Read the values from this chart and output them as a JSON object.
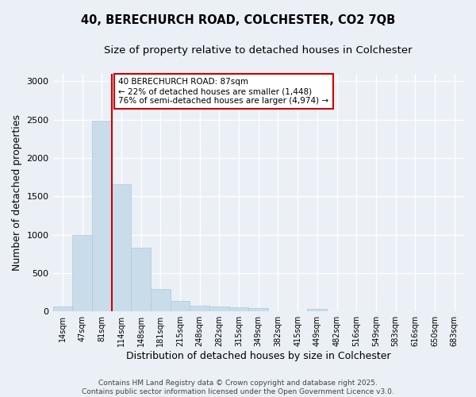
{
  "title_line1": "40, BERECHURCH ROAD, COLCHESTER, CO2 7QB",
  "title_line2": "Size of property relative to detached houses in Colchester",
  "xlabel": "Distribution of detached houses by size in Colchester",
  "ylabel": "Number of detached properties",
  "categories": [
    "14sqm",
    "47sqm",
    "81sqm",
    "114sqm",
    "148sqm",
    "181sqm",
    "215sqm",
    "248sqm",
    "282sqm",
    "315sqm",
    "349sqm",
    "382sqm",
    "415sqm",
    "449sqm",
    "482sqm",
    "516sqm",
    "549sqm",
    "583sqm",
    "616sqm",
    "650sqm",
    "683sqm"
  ],
  "values": [
    60,
    1000,
    2480,
    1660,
    830,
    290,
    140,
    70,
    60,
    55,
    45,
    0,
    0,
    30,
    0,
    0,
    0,
    0,
    0,
    0,
    0
  ],
  "bar_color": "#c9dcea",
  "bar_edge_color": "#b0c8db",
  "vline_color": "#cc0000",
  "vline_x_index": 2,
  "annotation_text_line1": "40 BERECHURCH ROAD: 87sqm",
  "annotation_text_line2": "← 22% of detached houses are smaller (1,448)",
  "annotation_text_line3": "76% of semi-detached houses are larger (4,974) →",
  "box_edge_color": "#cc0000",
  "ylim": [
    0,
    3100
  ],
  "yticks": [
    0,
    500,
    1000,
    1500,
    2000,
    2500,
    3000
  ],
  "footer_line1": "Contains HM Land Registry data © Crown copyright and database right 2025.",
  "footer_line2": "Contains public sector information licensed under the Open Government Licence v3.0.",
  "bg_color": "#eaf0f6",
  "plot_bg_color": "#eaf0f6",
  "grid_color": "#ffffff",
  "title_fontsize": 10.5,
  "subtitle_fontsize": 9.5,
  "tick_fontsize": 7,
  "label_fontsize": 9,
  "annotation_fontsize": 7.5,
  "footer_fontsize": 6.5
}
